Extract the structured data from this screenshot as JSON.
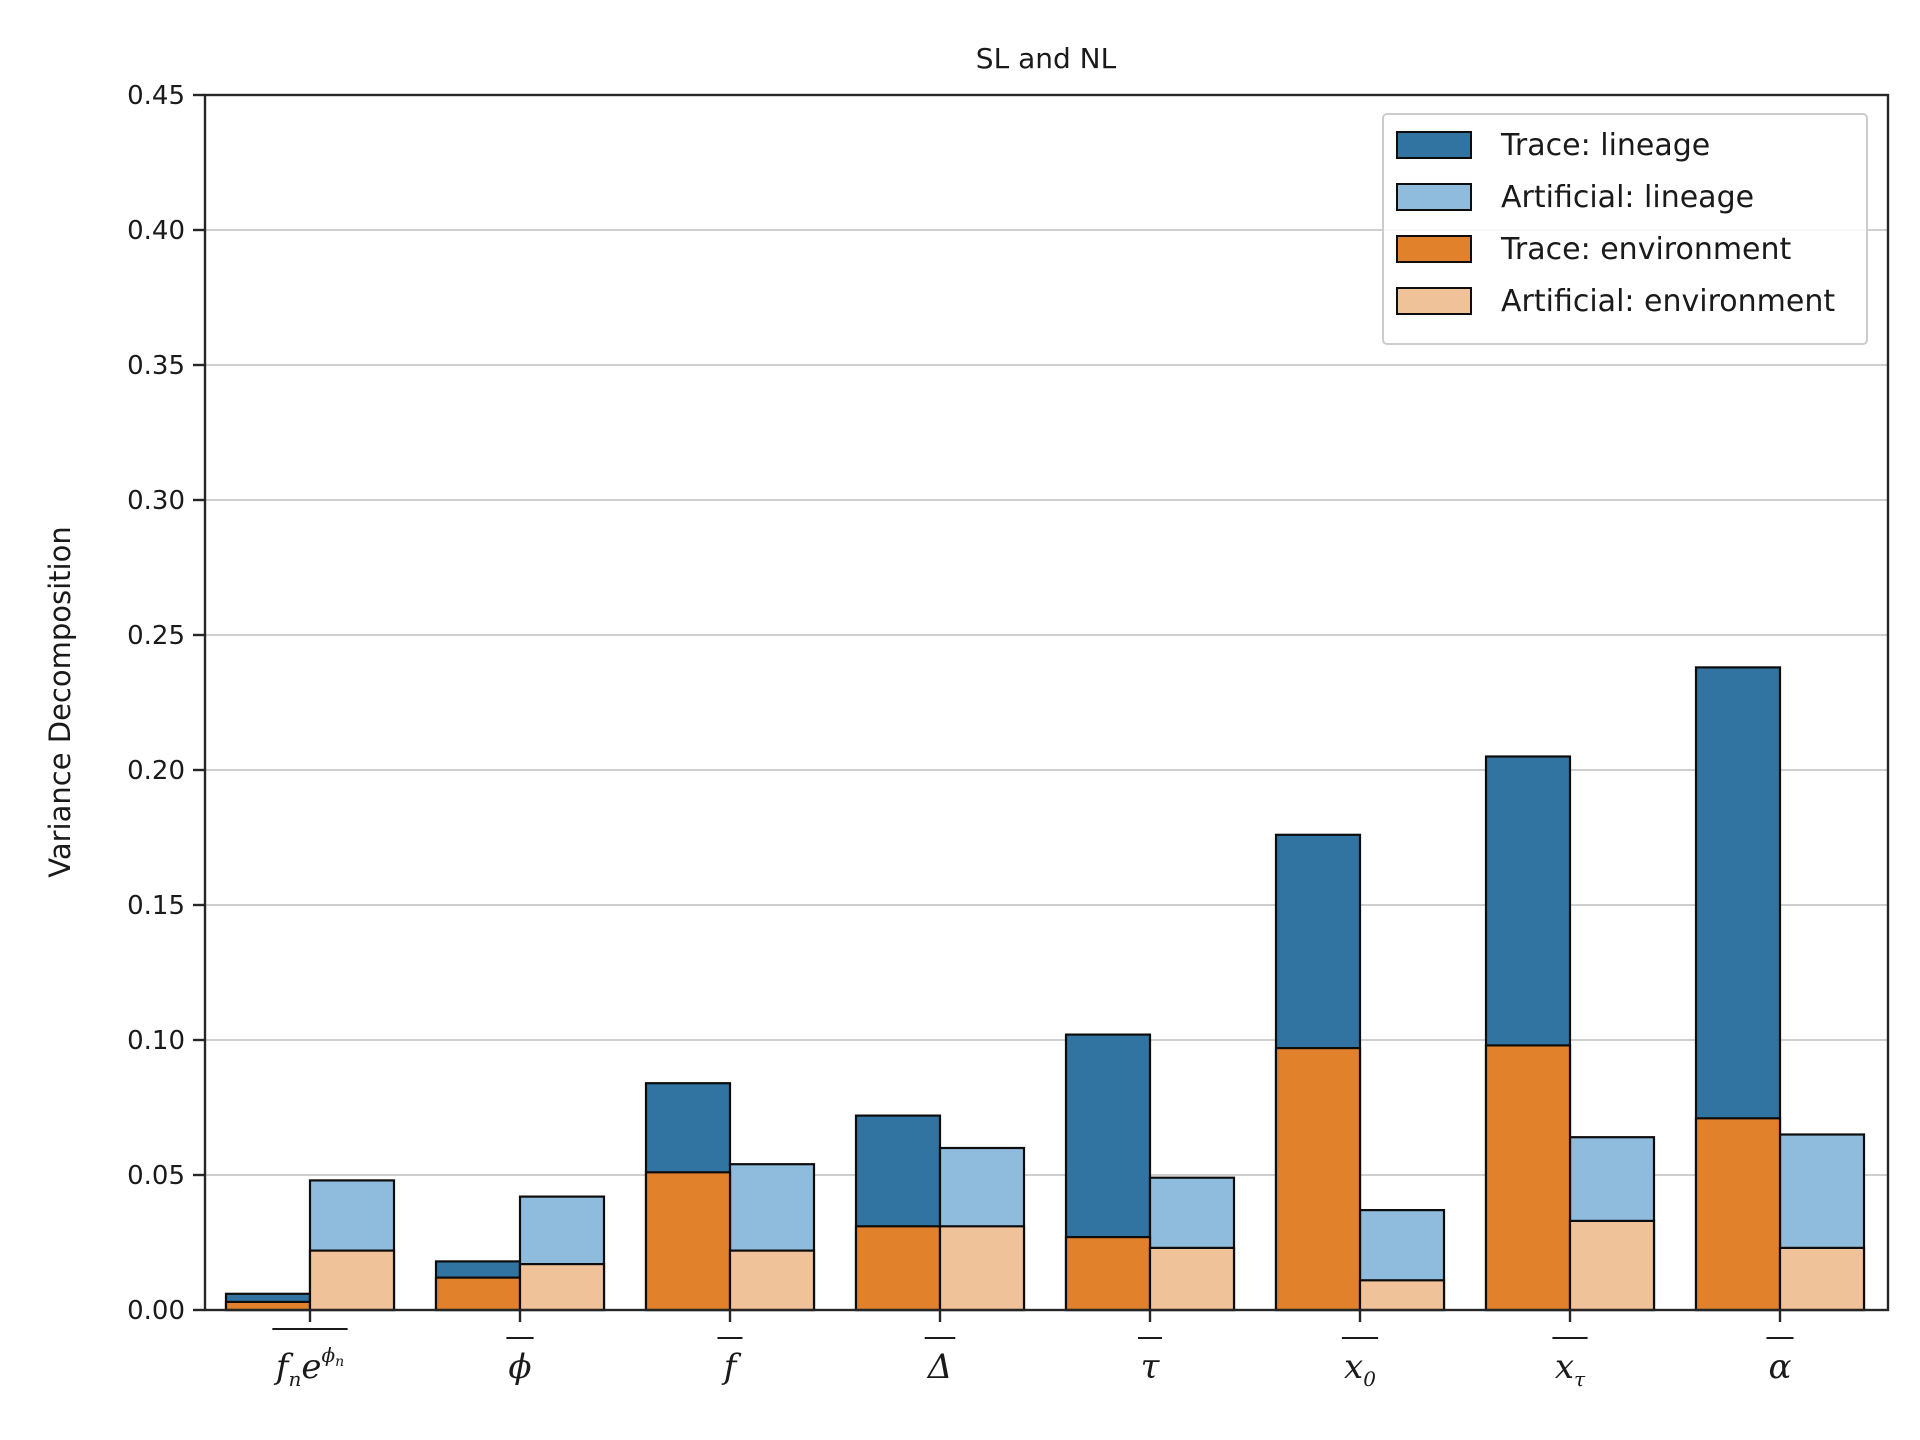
{
  "chart_data": {
    "type": "bar",
    "title": "SL and NL",
    "xlabel": "",
    "ylabel": "Variance Decomposition",
    "ylim": [
      0,
      0.45
    ],
    "yticks": [
      0.0,
      0.05,
      0.1,
      0.15,
      0.2,
      0.25,
      0.3,
      0.35,
      0.4,
      0.45
    ],
    "ytick_labels": [
      "0.00",
      "0.05",
      "0.10",
      "0.15",
      "0.20",
      "0.25",
      "0.30",
      "0.35",
      "0.40",
      "0.45"
    ],
    "grid": "horizontal",
    "legend_position": "top-right",
    "categories": [
      {
        "base": "f",
        "sub": "n",
        "extra": "e",
        "sup": "ϕ",
        "supsub": "n"
      },
      {
        "base": "ϕ"
      },
      {
        "base": "f"
      },
      {
        "base": "Δ"
      },
      {
        "base": "τ"
      },
      {
        "base": "x",
        "sub": "0"
      },
      {
        "base": "x",
        "sub": "τ"
      },
      {
        "base": "α"
      }
    ],
    "series": [
      {
        "name": "Trace: lineage",
        "color": "#3274a1",
        "values": [
          0.006,
          0.018,
          0.084,
          0.072,
          0.102,
          0.176,
          0.205,
          0.238
        ]
      },
      {
        "name": "Artificial: lineage",
        "color": "#8fbbdd",
        "values": [
          0.048,
          0.042,
          0.054,
          0.06,
          0.049,
          0.037,
          0.064,
          0.065
        ]
      },
      {
        "name": "Trace: environment",
        "color": "#e1812c",
        "values": [
          0.003,
          0.012,
          0.051,
          0.031,
          0.027,
          0.097,
          0.098,
          0.071
        ]
      },
      {
        "name": "Artificial: environment",
        "color": "#f0c299",
        "values": [
          0.022,
          0.017,
          0.022,
          0.031,
          0.023,
          0.011,
          0.033,
          0.023
        ]
      }
    ]
  }
}
